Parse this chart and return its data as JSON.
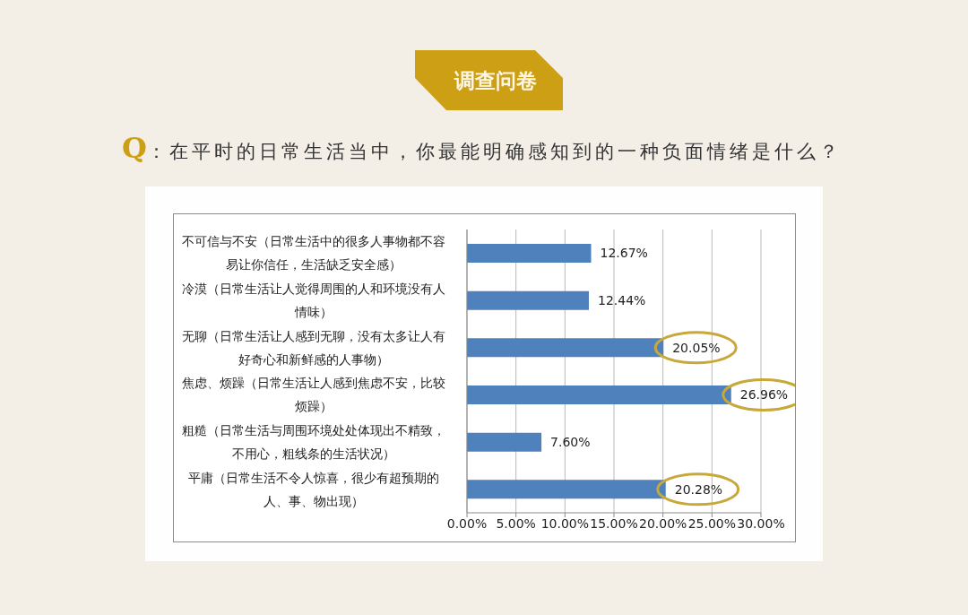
{
  "chart_data": {
    "type": "bar",
    "orientation": "horizontal",
    "title": "调查问卷",
    "subtitle": "Q：在平时的日常生活当中，你最能明确感知到的一种负面情绪是什么？",
    "categories": [
      "不可信与不安（日常生活中的很多人事物都不容易让你信任，生活缺乏安全感）",
      "冷漠（日常生活让人觉得周围的人和环境没有人情味）",
      "无聊（日常生活让人感到无聊，没有太多让人有好奇心和新鲜感的人事物）",
      "焦虑、烦躁（日常生活让人感到焦虑不安，比较烦躁）",
      "粗糙（日常生活与周围环境处处体现出不精致，不用心，粗线条的生活状况）",
      "平庸（日常生活不令人惊喜，很少有超预期的人、事、物出现）"
    ],
    "values": [
      12.67,
      12.44,
      20.05,
      26.96,
      7.6,
      20.28
    ],
    "value_labels": [
      "12.67%",
      "12.44%",
      "20.05%",
      "26.96%",
      "7.60%",
      "20.28%"
    ],
    "color": "#4f81bd",
    "xlim": [
      0,
      30
    ],
    "xticks": [
      {
        "value": 0,
        "label": "0.00%"
      },
      {
        "value": 5,
        "label": "5.00%"
      },
      {
        "value": 10,
        "label": "10.00%"
      },
      {
        "value": 15,
        "label": "15.00%"
      },
      {
        "value": 20,
        "label": "20.00%"
      },
      {
        "value": 25,
        "label": "25.00%"
      },
      {
        "value": 30,
        "label": "30.00%"
      }
    ],
    "grid": "x"
  }
}
